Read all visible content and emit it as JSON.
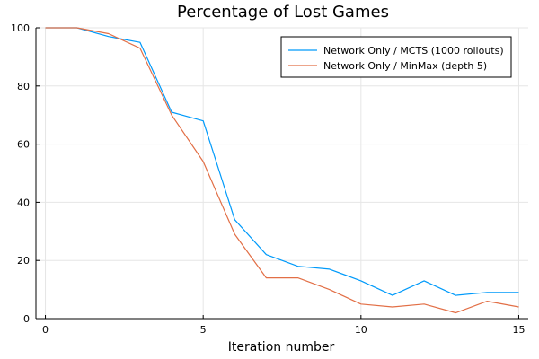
{
  "chart_data": {
    "type": "line",
    "title": "Percentage of Lost Games",
    "xlabel": "Iteration number",
    "ylabel": "",
    "xlim": [
      -0.3,
      15.3
    ],
    "ylim": [
      0,
      100
    ],
    "xticks": [
      0,
      5,
      10,
      15
    ],
    "yticks": [
      0,
      20,
      40,
      60,
      80,
      100
    ],
    "grid": true,
    "legend_position": "top-right",
    "x": [
      0,
      1,
      2,
      3,
      4,
      5,
      6,
      7,
      8,
      9,
      10,
      11,
      12,
      13,
      14,
      15
    ],
    "series": [
      {
        "name": "Network Only / MCTS (1000 rollouts)",
        "color": "#009AFA",
        "values": [
          100,
          100,
          97,
          95,
          71,
          68,
          34,
          22,
          18,
          17,
          13,
          8,
          13,
          8,
          9,
          9
        ]
      },
      {
        "name": "Network Only / MinMax (depth 5)",
        "color": "#E26F46",
        "values": [
          100,
          100,
          98,
          93,
          70,
          54,
          29,
          14,
          14,
          10,
          5,
          4,
          5,
          2,
          6,
          4
        ]
      }
    ]
  }
}
